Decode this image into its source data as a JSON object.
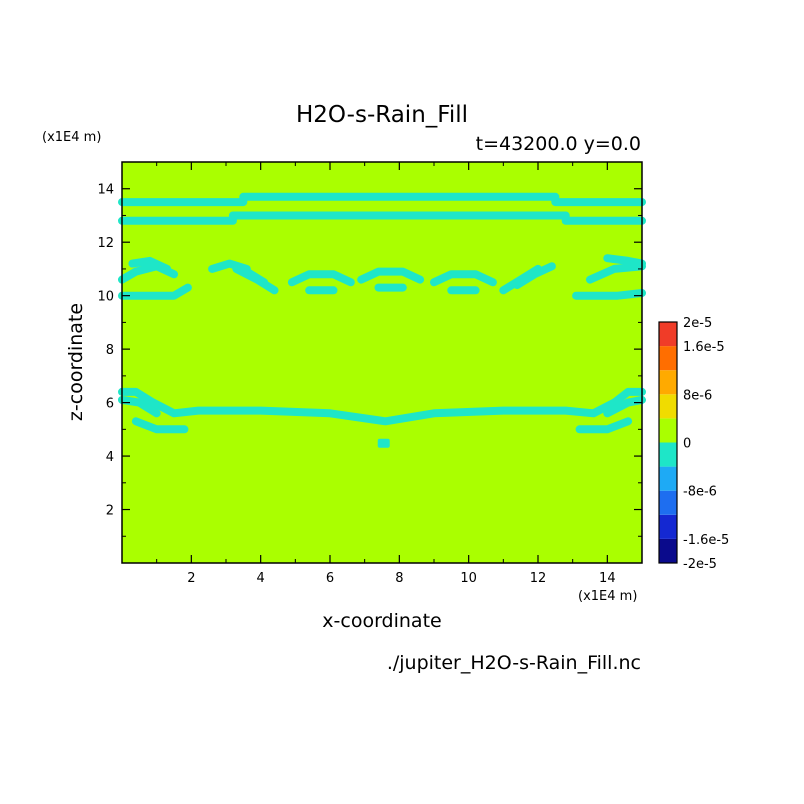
{
  "chart_data": {
    "type": "heatmap",
    "title": "H2O-s-Rain_Fill",
    "subtitle": "t=43200.0 y=0.0",
    "xlabel": "x-coordinate",
    "ylabel": "z-coordinate",
    "x_unit": "(x1E4 m)",
    "y_unit": "(x1E4 m)",
    "source_file": "./jupiter_H2O-s-Rain_Fill.nc",
    "xlim": [
      0,
      15
    ],
    "ylim": [
      0,
      15
    ],
    "x_ticks": [
      2,
      4,
      6,
      8,
      10,
      12,
      14
    ],
    "y_ticks": [
      2,
      4,
      6,
      8,
      10,
      12,
      14
    ],
    "background_value": 0,
    "colorbar": {
      "levels": [
        -2e-05,
        -1.6e-05,
        -1.2e-05,
        -8e-06,
        -4e-06,
        0,
        4e-06,
        8e-06,
        1.2e-05,
        1.6e-05,
        2e-05
      ],
      "colors": [
        "#0a0a8c",
        "#1428d2",
        "#1e6ef0",
        "#1eaaf5",
        "#1ee6c8",
        "#aaff00",
        "#f0dc00",
        "#ffaa00",
        "#ff6e00",
        "#f03c28"
      ],
      "tick_labels": [
        "2e-5",
        "1.6e-5",
        "8e-6",
        "0",
        "-8e-6",
        "-1.6e-5",
        "-2e-5"
      ],
      "tick_values": [
        2e-05,
        1.6e-05,
        8e-06,
        0,
        -8e-06,
        -1.6e-05,
        -2e-05
      ]
    },
    "features_value_range": [
      -4e-06,
      0
    ],
    "features": [
      {
        "shape": "band",
        "points": [
          [
            0,
            13.5
          ],
          [
            3.5,
            13.5
          ],
          [
            3.5,
            13.7
          ],
          [
            12.5,
            13.7
          ],
          [
            12.5,
            13.5
          ],
          [
            15,
            13.5
          ]
        ]
      },
      {
        "shape": "band",
        "points": [
          [
            0,
            12.8
          ],
          [
            3.2,
            12.8
          ],
          [
            3.2,
            13.0
          ],
          [
            12.8,
            13.0
          ],
          [
            12.8,
            12.8
          ],
          [
            15,
            12.8
          ]
        ]
      },
      {
        "shape": "band",
        "points": [
          [
            0,
            10.0
          ],
          [
            1.5,
            10.0
          ],
          [
            1.9,
            10.3
          ]
        ]
      },
      {
        "shape": "band",
        "points": [
          [
            0,
            10.6
          ],
          [
            0.4,
            10.9
          ],
          [
            1.0,
            11.1
          ],
          [
            1.5,
            10.8
          ]
        ]
      },
      {
        "shape": "band",
        "points": [
          [
            0.3,
            11.2
          ],
          [
            0.8,
            11.3
          ],
          [
            1.3,
            11.0
          ]
        ]
      },
      {
        "shape": "band",
        "points": [
          [
            2.6,
            11.0
          ],
          [
            3.1,
            11.2
          ],
          [
            3.6,
            11.0
          ]
        ]
      },
      {
        "shape": "band",
        "points": [
          [
            3.3,
            11.0
          ],
          [
            3.9,
            10.6
          ],
          [
            4.4,
            10.2
          ]
        ]
      },
      {
        "shape": "band",
        "points": [
          [
            3.6,
            10.9
          ],
          [
            4.1,
            10.5
          ]
        ]
      },
      {
        "shape": "band",
        "points": [
          [
            4.9,
            10.5
          ],
          [
            5.4,
            10.8
          ],
          [
            6.1,
            10.8
          ],
          [
            6.6,
            10.5
          ]
        ]
      },
      {
        "shape": "band",
        "points": [
          [
            5.4,
            10.2
          ],
          [
            6.1,
            10.2
          ]
        ]
      },
      {
        "shape": "band",
        "points": [
          [
            6.9,
            10.6
          ],
          [
            7.4,
            10.9
          ],
          [
            8.1,
            10.9
          ],
          [
            8.6,
            10.6
          ]
        ]
      },
      {
        "shape": "band",
        "points": [
          [
            7.4,
            10.3
          ],
          [
            8.1,
            10.3
          ]
        ]
      },
      {
        "shape": "band",
        "points": [
          [
            9.0,
            10.5
          ],
          [
            9.5,
            10.8
          ],
          [
            10.2,
            10.8
          ],
          [
            10.7,
            10.5
          ]
        ]
      },
      {
        "shape": "band",
        "points": [
          [
            9.5,
            10.2
          ],
          [
            10.2,
            10.2
          ]
        ]
      },
      {
        "shape": "band",
        "points": [
          [
            11.0,
            10.2
          ],
          [
            11.5,
            10.6
          ],
          [
            12.0,
            11.0
          ]
        ]
      },
      {
        "shape": "band",
        "points": [
          [
            11.4,
            10.4
          ],
          [
            11.9,
            10.8
          ],
          [
            12.4,
            11.1
          ]
        ]
      },
      {
        "shape": "band",
        "points": [
          [
            13.1,
            10.0
          ],
          [
            14.3,
            10.0
          ],
          [
            15,
            10.1
          ]
        ]
      },
      {
        "shape": "band",
        "points": [
          [
            13.5,
            10.6
          ],
          [
            14.2,
            11.0
          ],
          [
            15,
            11.1
          ]
        ]
      },
      {
        "shape": "band",
        "points": [
          [
            14.0,
            11.4
          ],
          [
            14.6,
            11.3
          ],
          [
            15,
            11.2
          ]
        ]
      },
      {
        "shape": "band",
        "points": [
          [
            0,
            6.4
          ],
          [
            0.4,
            6.4
          ],
          [
            0.9,
            6.0
          ],
          [
            1.5,
            5.6
          ],
          [
            2.2,
            5.7
          ],
          [
            4.0,
            5.7
          ],
          [
            6.0,
            5.6
          ],
          [
            7.6,
            5.3
          ],
          [
            9.0,
            5.6
          ],
          [
            11.0,
            5.7
          ],
          [
            12.8,
            5.7
          ],
          [
            13.6,
            5.6
          ],
          [
            14.2,
            6.0
          ],
          [
            14.6,
            6.4
          ],
          [
            15,
            6.4
          ]
        ]
      },
      {
        "shape": "band",
        "points": [
          [
            0,
            6.1
          ],
          [
            0.5,
            6.0
          ],
          [
            1.0,
            5.6
          ]
        ]
      },
      {
        "shape": "band",
        "points": [
          [
            0.4,
            5.3
          ],
          [
            1.0,
            5.0
          ],
          [
            1.8,
            5.0
          ]
        ]
      },
      {
        "shape": "band",
        "points": [
          [
            13.2,
            5.0
          ],
          [
            14.0,
            5.0
          ],
          [
            14.6,
            5.3
          ]
        ]
      },
      {
        "shape": "band",
        "points": [
          [
            14.0,
            5.6
          ],
          [
            14.6,
            6.0
          ],
          [
            15,
            6.1
          ]
        ]
      },
      {
        "shape": "blob",
        "points": [
          [
            7.55,
            4.5
          ]
        ]
      }
    ]
  }
}
